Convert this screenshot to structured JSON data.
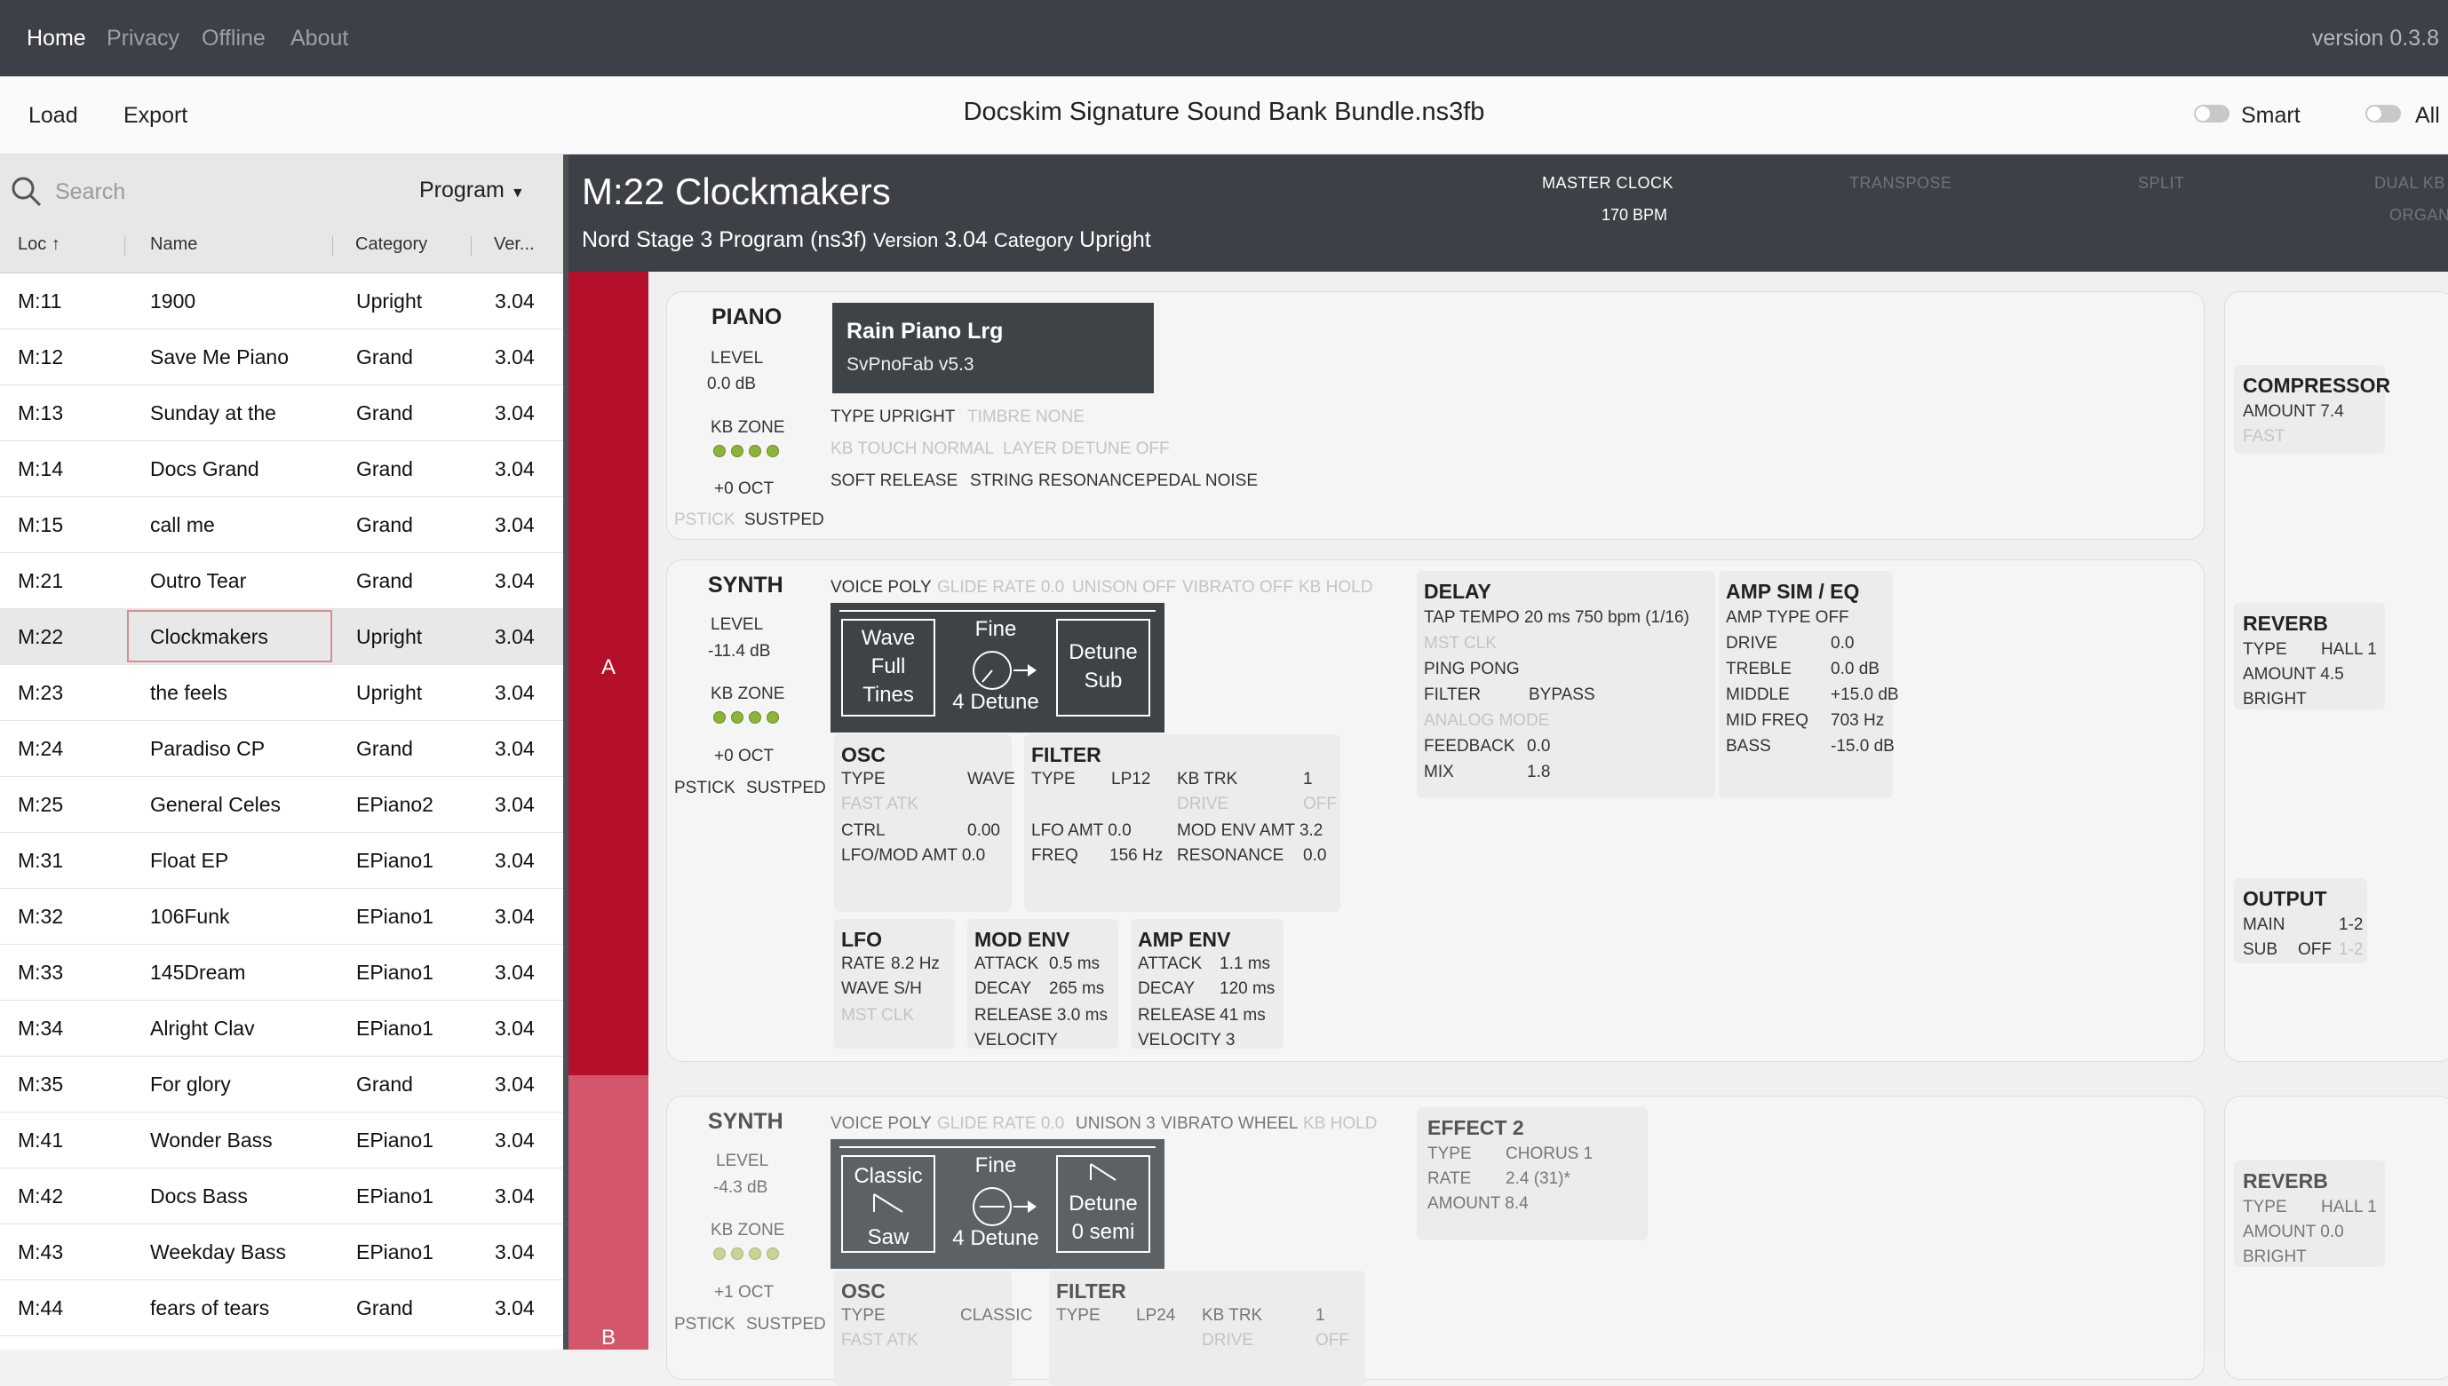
{
  "nav": {
    "items": [
      "Home",
      "Privacy",
      "Offline",
      "About"
    ],
    "version": "version 0.3.8"
  },
  "toolbar": {
    "load": "Load",
    "export": "Export",
    "file_title": "Docskim Signature Sound Bank Bundle.ns3fb",
    "smart": "Smart",
    "all": "All"
  },
  "sidebar": {
    "search_placeholder": "Search",
    "program_dropdown": "Program",
    "columns": {
      "loc": "Loc",
      "name": "Name",
      "category": "Category",
      "version": "Ver..."
    },
    "rows": [
      {
        "loc": "M:11",
        "name": "1900",
        "category": "Upright",
        "version": "3.04"
      },
      {
        "loc": "M:12",
        "name": "Save Me Piano",
        "category": "Grand",
        "version": "3.04"
      },
      {
        "loc": "M:13",
        "name": "Sunday at the",
        "category": "Grand",
        "version": "3.04"
      },
      {
        "loc": "M:14",
        "name": "Docs Grand",
        "category": "Grand",
        "version": "3.04"
      },
      {
        "loc": "M:15",
        "name": "call me",
        "category": "Grand",
        "version": "3.04"
      },
      {
        "loc": "M:21",
        "name": "Outro Tear",
        "category": "Grand",
        "version": "3.04"
      },
      {
        "loc": "M:22",
        "name": "Clockmakers",
        "category": "Upright",
        "version": "3.04"
      },
      {
        "loc": "M:23",
        "name": "the feels",
        "category": "Upright",
        "version": "3.04"
      },
      {
        "loc": "M:24",
        "name": "Paradiso CP",
        "category": "Grand",
        "version": "3.04"
      },
      {
        "loc": "M:25",
        "name": "General Celes",
        "category": "EPiano2",
        "version": "3.04"
      },
      {
        "loc": "M:31",
        "name": "Float EP",
        "category": "EPiano1",
        "version": "3.04"
      },
      {
        "loc": "M:32",
        "name": "106Funk",
        "category": "EPiano1",
        "version": "3.04"
      },
      {
        "loc": "M:33",
        "name": "145Dream",
        "category": "EPiano1",
        "version": "3.04"
      },
      {
        "loc": "M:34",
        "name": "Alright Clav",
        "category": "EPiano1",
        "version": "3.04"
      },
      {
        "loc": "M:35",
        "name": "For glory",
        "category": "Grand",
        "version": "3.04"
      },
      {
        "loc": "M:41",
        "name": "Wonder Bass",
        "category": "EPiano1",
        "version": "3.04"
      },
      {
        "loc": "M:42",
        "name": "Docs Bass",
        "category": "EPiano1",
        "version": "3.04"
      },
      {
        "loc": "M:43",
        "name": "Weekday Bass",
        "category": "EPiano1",
        "version": "3.04"
      },
      {
        "loc": "M:44",
        "name": "fears of tears",
        "category": "Grand",
        "version": "3.04"
      }
    ]
  },
  "program": {
    "title": "M:22 Clockmakers",
    "subtitle": "Nord Stage 3 Program (ns3f)",
    "version_label": "Version",
    "version": "3.04",
    "category_label": "Category",
    "category": "Upright",
    "master_clock_label": "MASTER CLOCK",
    "master_clock": "170 BPM",
    "transpose_label": "TRANSPOSE",
    "split_label": "SPLIT",
    "dual_kb_label": "DUAL KB",
    "organ_label": "ORGAN"
  },
  "layer_a": {
    "label": "A",
    "piano": {
      "title": "PIANO",
      "level_label": "LEVEL",
      "level": "0.0 dB",
      "kb_zone": "KB ZONE",
      "oct": "+0 OCT",
      "pstick": "PSTICK",
      "sustped": "SUSTPED",
      "sample_name": "Rain Piano Lrg",
      "sample_version": "SvPnoFab v5.3",
      "type": "TYPE UPRIGHT",
      "timbre": "TIMBRE NONE",
      "kb_touch": "KB TOUCH NORMAL",
      "layer_detune": "LAYER DETUNE OFF",
      "soft_release": "SOFT RELEASE",
      "string_res": "STRING RESONANCE",
      "pedal_noise": "PEDAL NOISE"
    },
    "synth": {
      "title": "SYNTH",
      "level_label": "LEVEL",
      "level": "-11.4 dB",
      "kb_zone": "KB ZONE",
      "oct": "+0 OCT",
      "pstick": "PSTICK",
      "sustped": "SUSTPED",
      "voice": "VOICE POLY",
      "glide": "GLIDE RATE 0.0",
      "unison": "UNISON OFF",
      "vibrato": "VIBRATO OFF",
      "kb_hold": "KB HOLD",
      "wave_lines": [
        "Wave",
        "Full",
        "Tines"
      ],
      "fine": "Fine",
      "detune": "4 Detune",
      "detune_box": [
        "Detune",
        "Sub"
      ],
      "osc": {
        "title": "OSC",
        "type_label": "TYPE",
        "type": "WAVE",
        "fast_atk": "FAST ATK",
        "ctrl_label": "CTRL",
        "ctrl": "0.00",
        "lfo_mod": "LFO/MOD AMT 0.0"
      },
      "filter": {
        "title": "FILTER",
        "type_label": "TYPE",
        "type": "LP12",
        "kb_trk_label": "KB TRK",
        "kb_trk": "1",
        "drive_label": "DRIVE",
        "drive": "OFF",
        "lfo_amt": "LFO AMT 0.0",
        "mod_env_amt": "MOD ENV AMT 3.2",
        "freq_label": "FREQ",
        "freq": "156 Hz",
        "res_label": "RESONANCE",
        "res": "0.0"
      },
      "lfo": {
        "title": "LFO",
        "rate_label": "RATE",
        "rate": "8.2 Hz",
        "wave": "WAVE S/H",
        "mst_clk": "MST CLK"
      },
      "mod_env": {
        "title": "MOD ENV",
        "attack_label": "ATTACK",
        "attack": "0.5 ms",
        "decay_label": "DECAY",
        "decay": "265 ms",
        "release": "RELEASE 3.0 ms",
        "velocity": "VELOCITY"
      },
      "amp_env": {
        "title": "AMP ENV",
        "attack_label": "ATTACK",
        "attack": "1.1 ms",
        "decay_label": "DECAY",
        "decay": "120 ms",
        "release_label": "RELEASE",
        "release": "41 ms",
        "velocity": "VELOCITY 3"
      }
    },
    "delay": {
      "title": "DELAY",
      "tap": "TAP TEMPO 20 ms 750 bpm (1/16)",
      "mst_clk": "MST CLK",
      "ping": "PING PONG",
      "filter_label": "FILTER",
      "filter": "BYPASS",
      "analog": "ANALOG MODE",
      "feedback_label": "FEEDBACK",
      "feedback": "0.0",
      "mix_label": "MIX",
      "mix": "1.8"
    },
    "ampsim": {
      "title": "AMP SIM / EQ",
      "amp_type": "AMP TYPE OFF",
      "drive_label": "DRIVE",
      "drive": "0.0",
      "treble_label": "TREBLE",
      "treble": "0.0 dB",
      "middle_label": "MIDDLE",
      "middle": "+15.0 dB",
      "midfreq_label": "MID FREQ",
      "midfreq": "703 Hz",
      "bass_label": "BASS",
      "bass": "-15.0 dB"
    },
    "compressor": {
      "title": "COMPRESSOR",
      "amount": "AMOUNT 7.4",
      "fast": "FAST"
    },
    "reverb": {
      "title": "REVERB",
      "type_label": "TYPE",
      "type": "HALL 1",
      "amount": "AMOUNT 4.5",
      "bright": "BRIGHT"
    },
    "output": {
      "title": "OUTPUT",
      "main_label": "MAIN",
      "main": "1-2",
      "sub_label": "SUB",
      "sub": "OFF",
      "sub_dim": "1-2"
    }
  },
  "layer_b": {
    "label": "B",
    "synth": {
      "title": "SYNTH",
      "level_label": "LEVEL",
      "level": "-4.3 dB",
      "kb_zone": "KB ZONE",
      "oct": "+1 OCT",
      "pstick": "PSTICK",
      "sustped": "SUSTPED",
      "voice": "VOICE POLY",
      "glide": "GLIDE RATE 0.0",
      "unison": "UNISON 3",
      "vibrato": "VIBRATO WHEEL",
      "kb_hold": "KB HOLD",
      "wave_lines": [
        "Classic",
        "Saw"
      ],
      "fine": "Fine",
      "detune": "4 Detune",
      "detune_box": [
        "Detune",
        "0 semi"
      ],
      "osc": {
        "title": "OSC",
        "type_label": "TYPE",
        "type": "CLASSIC",
        "fast_atk": "FAST ATK"
      },
      "filter": {
        "title": "FILTER",
        "type_label": "TYPE",
        "type": "LP24",
        "kb_trk_label": "KB TRK",
        "kb_trk": "1",
        "drive_label": "DRIVE",
        "drive": "OFF"
      }
    },
    "effect2": {
      "title": "EFFECT 2",
      "type_label": "TYPE",
      "type": "CHORUS 1",
      "rate_label": "RATE",
      "rate": "2.4 (31)*",
      "amount": "AMOUNT 8.4"
    },
    "reverb": {
      "title": "REVERB",
      "type_label": "TYPE",
      "type": "HALL 1",
      "amount": "AMOUNT 0.0",
      "bright": "BRIGHT"
    }
  },
  "colors": {
    "accent_a": "#b5102b",
    "accent_b": "#d4566c",
    "header_bg": "#3d4147",
    "kb_zone_dot": "#8cb33a"
  }
}
